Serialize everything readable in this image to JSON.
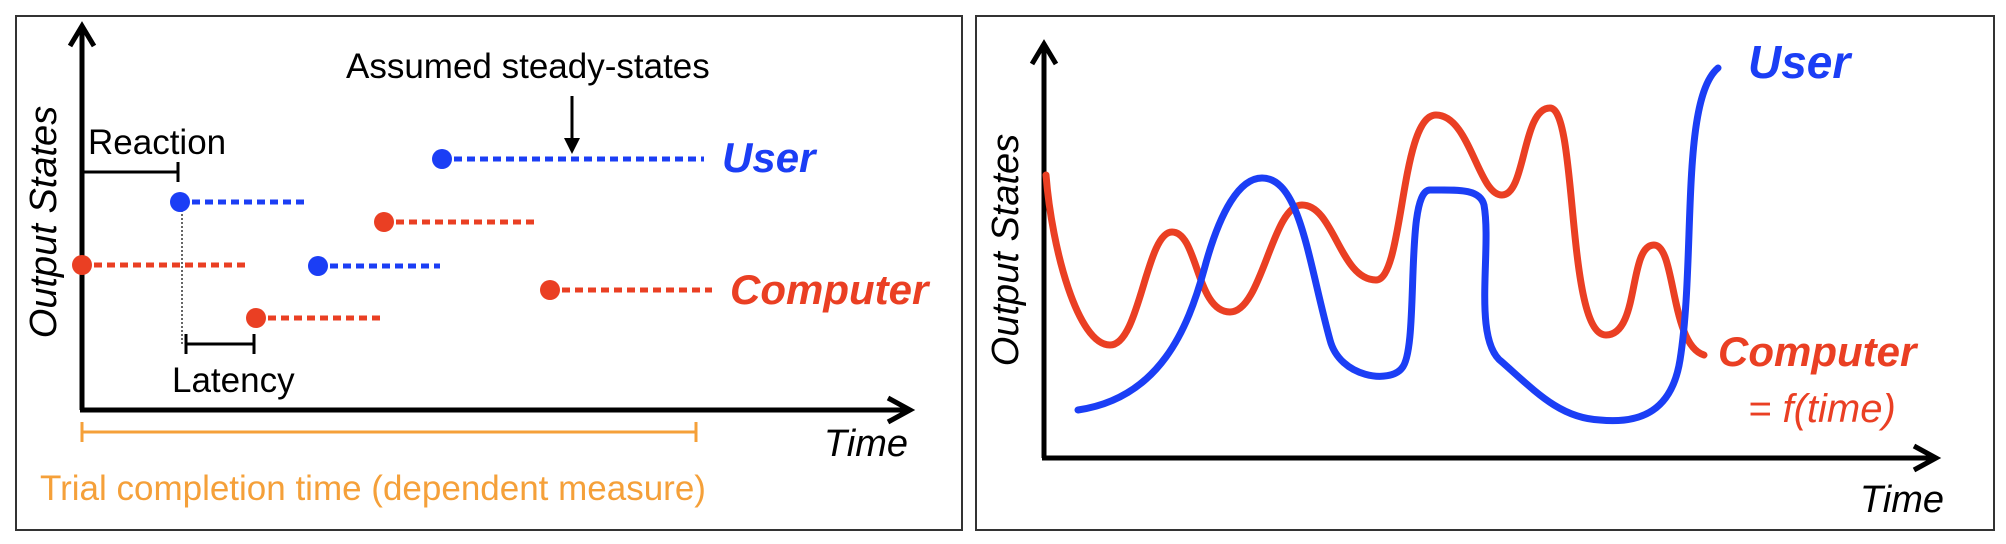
{
  "colors": {
    "user": "#1b3ef5",
    "computer": "#ea3f23",
    "trial": "#f5a039",
    "axis": "#000000",
    "frame": "#333333"
  },
  "left_panel": {
    "y_axis_label": "Output States",
    "x_axis_label": "Time",
    "steady_state_label": "Assumed steady-states",
    "reaction_label": "Reaction",
    "latency_label": "Latency",
    "user_label": "User",
    "computer_label": "Computer",
    "trial_label": "Trial completion time (dependent measure)"
  },
  "right_panel": {
    "y_axis_label": "Output States",
    "x_axis_label": "Time",
    "user_label": "User",
    "computer_label": "Computer",
    "computer_formula": "= f(time)"
  }
}
